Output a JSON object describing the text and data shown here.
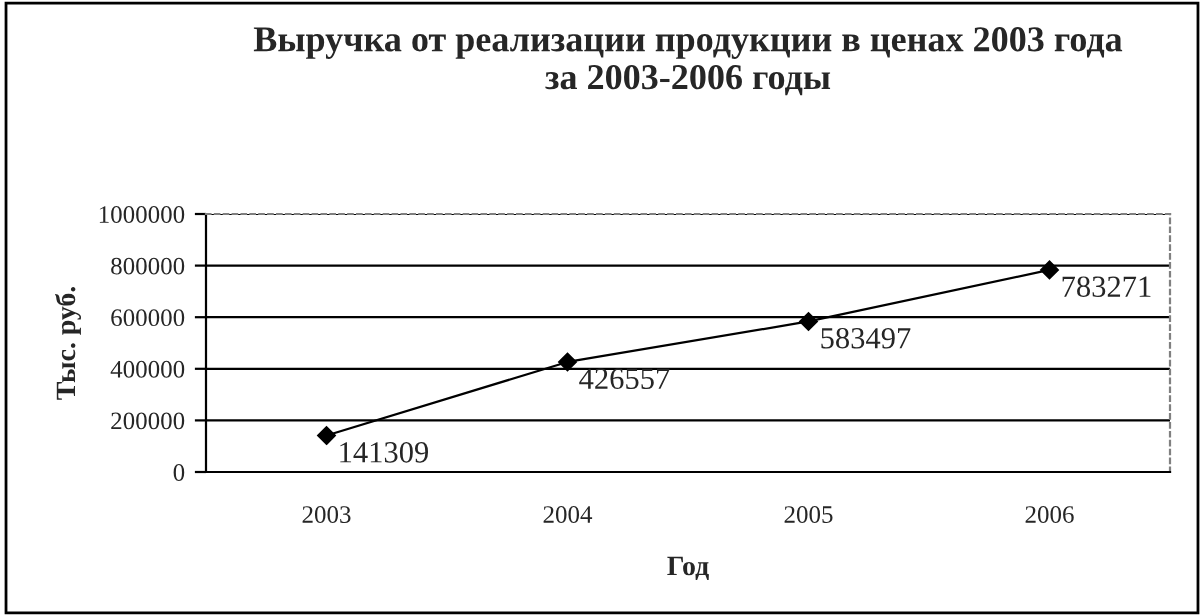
{
  "chart_data": {
    "type": "line",
    "title": "Выручка от реализации продукции в ценах 2003 года\nза 2003-2006 годы",
    "xlabel": "Год",
    "ylabel": "Тыс. руб.",
    "categories": [
      "2003",
      "2004",
      "2005",
      "2006"
    ],
    "series": [
      {
        "color": "#000000",
        "values": [
          141309,
          426557,
          583497,
          783271
        ]
      }
    ],
    "ylim": [
      0,
      1000000
    ],
    "yticks": [
      0,
      200000,
      400000,
      600000,
      800000,
      1000000
    ],
    "grid": "y",
    "legend": false,
    "marker": "diamond",
    "line_style": "solid",
    "data_labels": true
  }
}
